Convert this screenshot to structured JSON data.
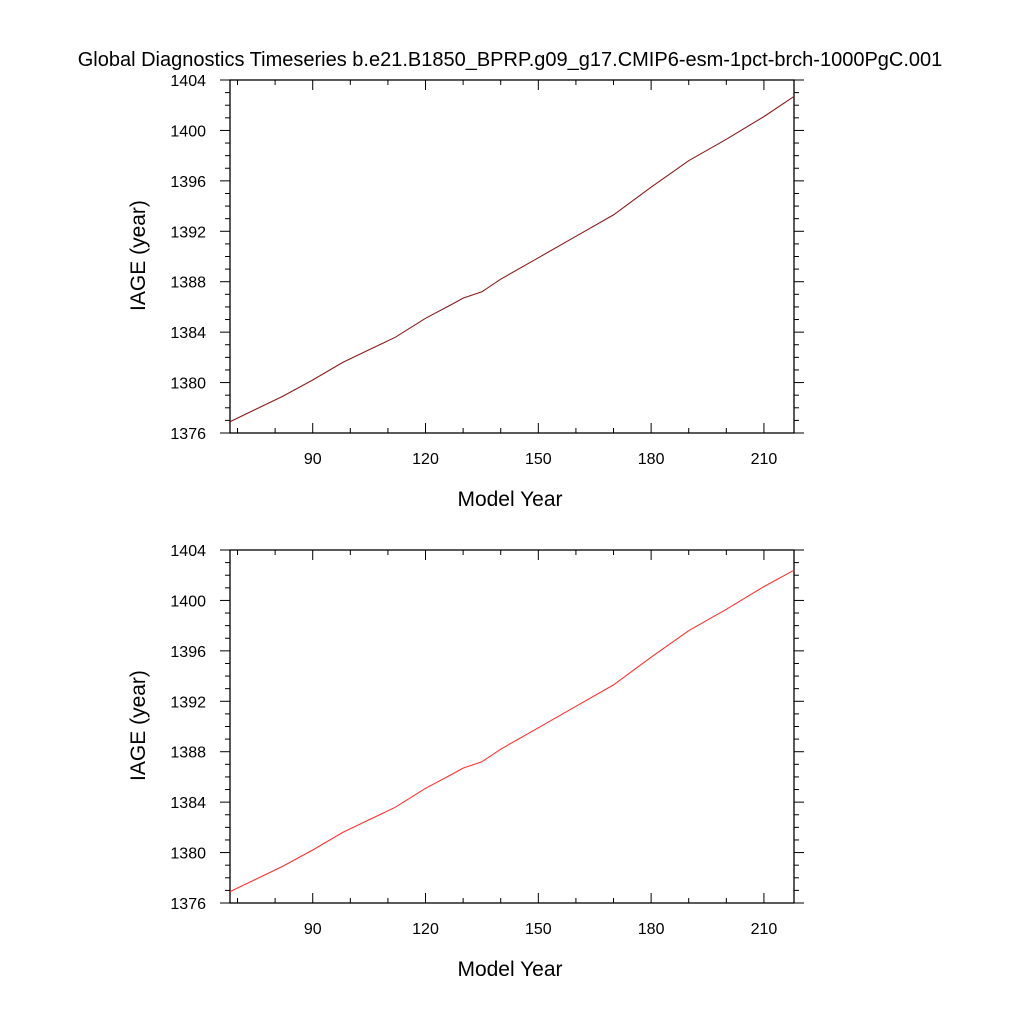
{
  "title": "Global Diagnostics Timeseries b.e21.B1850_BPRP.g09_g17.CMIP6-esm-1pct-brch-1000PgC.001",
  "chart_data": [
    {
      "type": "line",
      "xlabel": "Model Year",
      "ylabel": "IAGE (year)",
      "xlim": [
        68,
        218
      ],
      "ylim": [
        1376,
        1404
      ],
      "xticks": [
        90,
        120,
        150,
        180,
        210
      ],
      "yticks": [
        1376,
        1380,
        1384,
        1388,
        1392,
        1396,
        1400,
        1404
      ],
      "grid": false,
      "series": [
        {
          "color": "#8b1a1a",
          "x": [
            68,
            75,
            82,
            90,
            98,
            105,
            112,
            120,
            127,
            130,
            135,
            140,
            150,
            160,
            170,
            180,
            190,
            200,
            210,
            218
          ],
          "y": [
            1376.9,
            1377.9,
            1378.9,
            1380.2,
            1381.6,
            1382.6,
            1383.6,
            1385.1,
            1386.2,
            1386.7,
            1387.2,
            1388.2,
            1389.9,
            1391.6,
            1393.3,
            1395.5,
            1397.6,
            1399.3,
            1401.1,
            1402.7
          ]
        }
      ]
    },
    {
      "type": "line",
      "xlabel": "Model Year",
      "ylabel": "IAGE (year)",
      "xlim": [
        68,
        218
      ],
      "ylim": [
        1376,
        1404
      ],
      "xticks": [
        90,
        120,
        150,
        180,
        210
      ],
      "yticks": [
        1376,
        1380,
        1384,
        1388,
        1392,
        1396,
        1400,
        1404
      ],
      "grid": false,
      "series": [
        {
          "color": "#ff3030",
          "x": [
            68,
            75,
            82,
            90,
            98,
            105,
            112,
            120,
            127,
            130,
            135,
            140,
            150,
            160,
            170,
            180,
            190,
            200,
            210,
            218
          ],
          "y": [
            1376.9,
            1377.9,
            1378.9,
            1380.2,
            1381.6,
            1382.6,
            1383.6,
            1385.1,
            1386.2,
            1386.7,
            1387.2,
            1388.2,
            1389.9,
            1391.6,
            1393.3,
            1395.5,
            1397.6,
            1399.3,
            1401.1,
            1402.4
          ]
        }
      ]
    }
  ]
}
